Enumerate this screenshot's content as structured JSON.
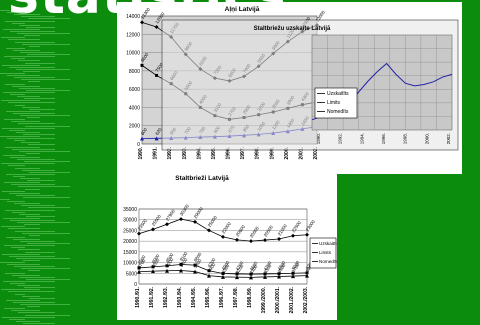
{
  "banner_text": "statistics",
  "charts": {
    "top_outer": {
      "title": "Aļņi Latvijā",
      "ylim": [
        0,
        14000
      ],
      "yticks": [
        "0",
        "2000",
        "4000",
        "6000",
        "8000",
        "10000",
        "12000",
        "14000"
      ],
      "categories": [
        "1990.",
        "1991.",
        "1992.",
        "1993.",
        "1994.",
        "1995.",
        "1996.",
        "1997.",
        "1998.",
        "1999.",
        "2000.",
        "2001.",
        "2002."
      ],
      "series": [
        {
          "name": "",
          "color": "#000000",
          "values": [
            13300,
            12800,
            11700,
            9800,
            8200,
            7200,
            6900,
            7400,
            8500,
            9900,
            11200,
            12300,
            13000
          ]
        },
        {
          "name": "",
          "color": "#000000",
          "values": [
            8600,
            7500,
            6600,
            5500,
            4000,
            3100,
            2700,
            2900,
            3200,
            3500,
            3900,
            4300,
            4600
          ]
        },
        {
          "name": "",
          "color": "#1a1aaa",
          "values": [
            600,
            620,
            650,
            700,
            760,
            800,
            870,
            950,
            1050,
            1200,
            1400,
            1650,
            1900
          ]
        }
      ]
    },
    "top_inner": {
      "title": "Staltbriežu uzskaite Latvijā",
      "ylim": [
        0,
        14000
      ],
      "yticks": [
        "0",
        "2000",
        "4000",
        "6000",
        "8000",
        "10000",
        "12000",
        "14000"
      ],
      "categories": [
        "1990.",
        "1992.",
        "1994.",
        "1996.",
        "1998.",
        "2000.",
        "2002."
      ],
      "legend": [
        "Uzskaitīts",
        "Limits",
        "Nomedīts"
      ],
      "series": [
        {
          "name": "Uzskaitīts",
          "color": "#000000",
          "values": [
            13300,
            11700,
            8200,
            6900,
            8500,
            11200,
            13000
          ]
        },
        {
          "name": "Limits",
          "color": "#000000",
          "values": [
            8600,
            6600,
            4000,
            2700,
            3200,
            3900,
            4600
          ]
        },
        {
          "name": "Nomedīts",
          "color": "#000000",
          "values": [
            600,
            650,
            760,
            870,
            1050,
            1400,
            1900
          ]
        }
      ],
      "blue_trend": [
        1500,
        2000,
        2600,
        3300,
        4200,
        5600,
        7200,
        8600,
        9800,
        8200,
        6900,
        6500,
        6700,
        7100,
        7800,
        8200
      ]
    },
    "bottom": {
      "title": "Staltbrieži Latvijā",
      "ylim": [
        0,
        35000
      ],
      "yticks": [
        "0",
        "5000",
        "10000",
        "15000",
        "20000",
        "25000",
        "30000",
        "35000"
      ],
      "categories": [
        "1990./91.",
        "1991./92.",
        "1992./93.",
        "1993./94.",
        "1994./95.",
        "1995./96.",
        "1996./97.",
        "1997./98.",
        "1998./99.",
        "1999./2000.",
        "2000./2001.",
        "2001./2002.",
        "2002./2003."
      ],
      "legend": [
        "Uzskaitīts",
        "Limits",
        "Nomedīts"
      ],
      "series": [
        {
          "name": "Uzskaitīts",
          "color": "#000000",
          "values": [
            23500,
            25500,
            27900,
            30300,
            29000,
            25000,
            22000,
            20600,
            20000,
            20500,
            21000,
            22500,
            23000
          ]
        },
        {
          "name": "Limits",
          "color": "#000000",
          "values": [
            7500,
            8000,
            8500,
            9100,
            8800,
            6200,
            4900,
            4700,
            4600,
            4700,
            4800,
            5000,
            5200
          ]
        },
        {
          "name": "Nomedīts",
          "color": "#000000",
          "values": [
            5700,
            6000,
            6200,
            6300,
            5800,
            3900,
            3300,
            3200,
            3100,
            3300,
            3500,
            3700,
            3900
          ]
        }
      ]
    }
  },
  "chart_data": [
    {
      "type": "line",
      "title": "Aļņi Latvijā",
      "categories": [
        "1990.",
        "1991.",
        "1992.",
        "1993.",
        "1994.",
        "1995.",
        "1996.",
        "1997.",
        "1998.",
        "1999.",
        "2000.",
        "2001.",
        "2002."
      ],
      "ylim": [
        0,
        14000
      ],
      "series": [
        {
          "values": [
            13300,
            12800,
            11700,
            9800,
            8200,
            7200,
            6900,
            7400,
            8500,
            9900,
            11200,
            12300,
            13000
          ]
        },
        {
          "values": [
            8600,
            7500,
            6600,
            5500,
            4000,
            3100,
            2700,
            2900,
            3200,
            3500,
            3900,
            4300,
            4600
          ]
        },
        {
          "values": [
            600,
            620,
            650,
            700,
            760,
            800,
            870,
            950,
            1050,
            1200,
            1400,
            1650,
            1900
          ]
        }
      ]
    },
    {
      "type": "line",
      "title": "Staltbriežu uzskaite Latvijā",
      "categories": [
        "1990.",
        "1992.",
        "1994.",
        "1996.",
        "1998.",
        "2000.",
        "2002."
      ],
      "ylim": [
        0,
        14000
      ],
      "series": [
        {
          "name": "Uzskaitīts",
          "values": [
            13300,
            11700,
            8200,
            6900,
            8500,
            11200,
            13000
          ]
        },
        {
          "name": "Limits",
          "values": [
            8600,
            6600,
            4000,
            2700,
            3200,
            3900,
            4600
          ]
        },
        {
          "name": "Nomedīts",
          "values": [
            600,
            650,
            760,
            870,
            1050,
            1400,
            1900
          ]
        }
      ]
    },
    {
      "type": "line",
      "title": "Staltbrieži Latvijā",
      "categories": [
        "1990./91.",
        "1991./92.",
        "1992./93.",
        "1993./94.",
        "1994./95.",
        "1995./96.",
        "1996./97.",
        "1997./98.",
        "1998./99.",
        "1999./2000.",
        "2000./2001.",
        "2001./2002.",
        "2002./2003."
      ],
      "ylim": [
        0,
        35000
      ],
      "legend_position": "right",
      "series": [
        {
          "name": "Uzskaitīts",
          "values": [
            23500,
            25500,
            27900,
            30300,
            29000,
            25000,
            22000,
            20600,
            20000,
            20500,
            21000,
            22500,
            23000
          ]
        },
        {
          "name": "Limits",
          "values": [
            7500,
            8000,
            8500,
            9100,
            8800,
            6200,
            4900,
            4700,
            4600,
            4700,
            4800,
            5000,
            5200
          ]
        },
        {
          "name": "Nomedīts",
          "values": [
            5700,
            6000,
            6200,
            6300,
            5800,
            3900,
            3300,
            3200,
            3100,
            3300,
            3500,
            3700,
            3900
          ]
        }
      ]
    }
  ]
}
